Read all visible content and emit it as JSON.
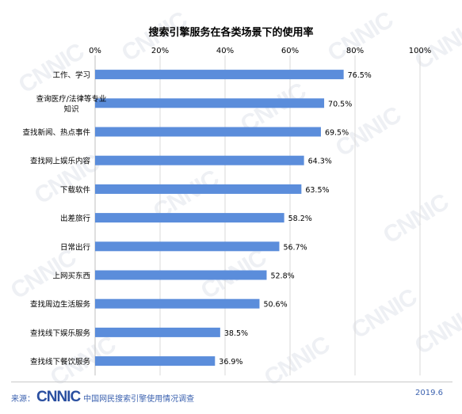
{
  "chart_data": {
    "type": "bar",
    "orientation": "horizontal",
    "title": "搜索引擎服务在各类场景下的使用率",
    "categories": [
      "工作、学习",
      "查询医疗/法律等专业知识",
      "查找新闻、热点事件",
      "查找网上娱乐内容",
      "下载软件",
      "出差旅行",
      "日常出行",
      "上网买东西",
      "查找周边生活服务",
      "查找线下娱乐服务",
      "查找线下餐饮服务"
    ],
    "category_lines": [
      [
        "工作、学习"
      ],
      [
        "查询医疗/法律等专业",
        "知识"
      ],
      [
        "查找新闻、热点事件"
      ],
      [
        "查找网上娱乐内容"
      ],
      [
        "下载软件"
      ],
      [
        "出差旅行"
      ],
      [
        "日常出行"
      ],
      [
        "上网买东西"
      ],
      [
        "查找周边生活服务"
      ],
      [
        "查找线下娱乐服务"
      ],
      [
        "查找线下餐饮服务"
      ]
    ],
    "values": [
      76.5,
      70.5,
      69.5,
      64.3,
      63.5,
      58.2,
      56.7,
      52.8,
      50.6,
      38.5,
      36.9
    ],
    "value_labels": [
      "76.5%",
      "70.5%",
      "69.5%",
      "64.3%",
      "63.5%",
      "58.2%",
      "56.7%",
      "52.8%",
      "50.6%",
      "38.5%",
      "36.9%"
    ],
    "xlim": [
      0,
      100
    ],
    "xticks": [
      "0%",
      "20%",
      "40%",
      "60%",
      "80%",
      "100%"
    ],
    "axis_position": "top",
    "grid": true,
    "bar_color": "#5b8ddb"
  },
  "watermark": "CNNIC",
  "footer": {
    "source_label": "来源：",
    "logo_text": "CNNIC",
    "source_text": "中国网民搜索引擎使用情况调查",
    "date": "2019.6"
  }
}
